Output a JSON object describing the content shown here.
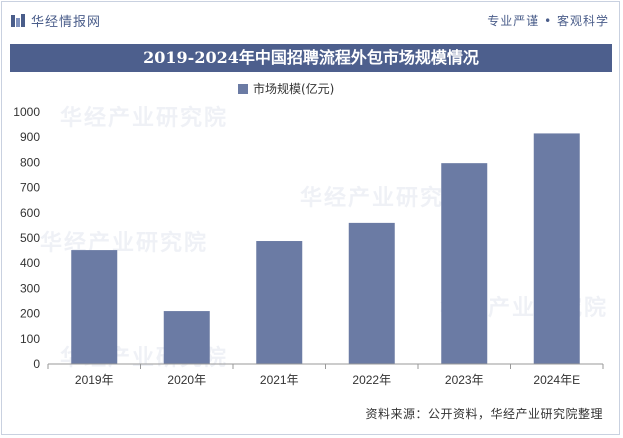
{
  "header": {
    "brand_name": "华经情报网",
    "slogan": "专业严谨 • 客观科学"
  },
  "colors": {
    "bar": "#6b7ba4",
    "title_bg": "#4d5f8d",
    "axis": "#999999"
  },
  "icons": {
    "logo": "huajing-logo-icon"
  },
  "watermark": "华经产业研究院",
  "chart_data": {
    "type": "bar",
    "title": "2019-2024年中国招聘流程外包市场规模情况",
    "categories": [
      "2019年",
      "2020年",
      "2021年",
      "2022年",
      "2023年",
      "2024年E"
    ],
    "series": [
      {
        "name": "市场规模(亿元)",
        "values": [
          452,
          210,
          488,
          560,
          797,
          915
        ]
      }
    ],
    "ylim": [
      0,
      1000
    ],
    "yticks": [
      0,
      100,
      200,
      300,
      400,
      500,
      600,
      700,
      800,
      900,
      1000
    ],
    "xlabel": "",
    "ylabel": "",
    "legend": "top-center",
    "grid": false
  },
  "footer": {
    "source": "资料来源：公开资料，华经产业研究院整理"
  }
}
